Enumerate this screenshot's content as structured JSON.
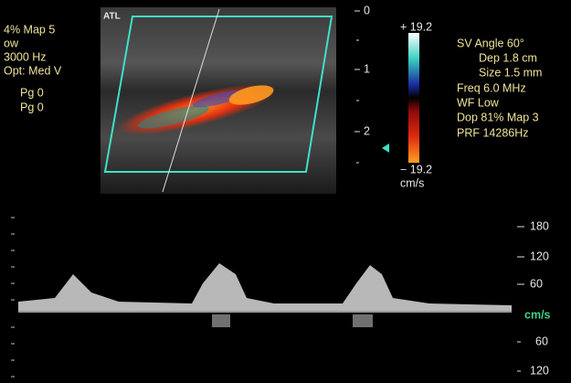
{
  "left_panel": {
    "lines": [
      "4%  Map 5",
      "ow",
      "3000  Hz",
      "Opt: Med V",
      "Pg 0",
      "Pg 0"
    ]
  },
  "probe_logo": "ATL",
  "depth_scale": {
    "labels": [
      "0",
      "1",
      "2"
    ]
  },
  "color_bar": {
    "top": "+ 19.2",
    "bottom": "− 19.2",
    "unit": "cm/s"
  },
  "settings": {
    "lines": [
      "SV Angle 60°",
      "Dep 1.8  cm",
      "Size 1.5  mm",
      "Freq 6.0  MHz",
      "WF Low",
      "Dop 81%  Map 3",
      "PRF 14286Hz"
    ]
  },
  "spectral_scale": {
    "labels": [
      "180",
      "120",
      "60",
      "cm/s",
      "60",
      "120"
    ]
  }
}
